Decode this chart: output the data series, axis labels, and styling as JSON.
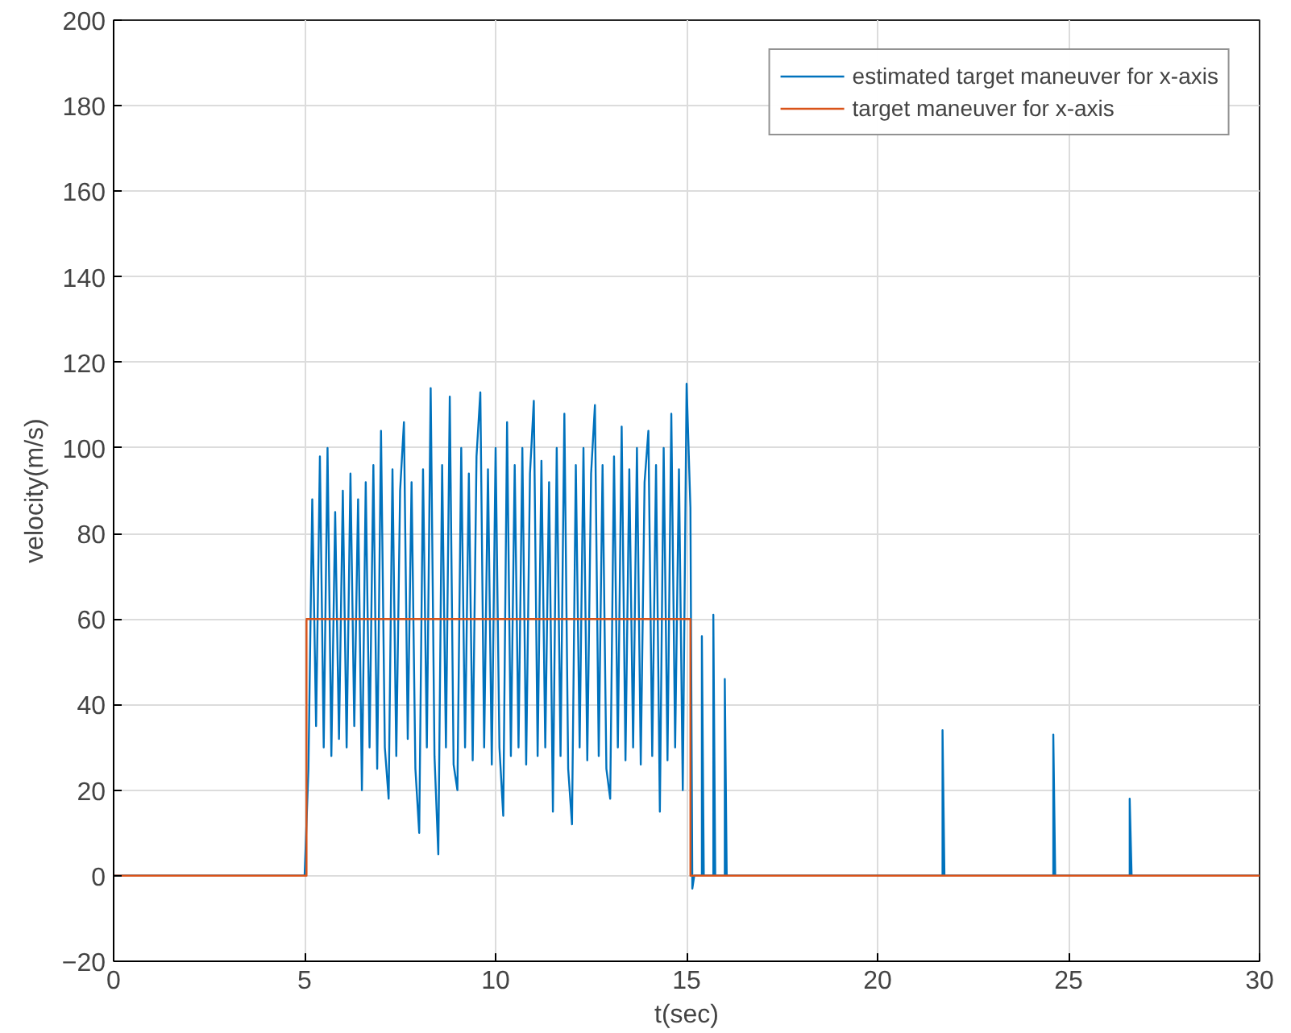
{
  "chart_data": {
    "type": "line",
    "xlabel": "t(sec)",
    "ylabel": "velocity(m/s)",
    "xlim": [
      0,
      30
    ],
    "ylim": [
      -20,
      200
    ],
    "xticks": [
      0,
      5,
      10,
      15,
      20,
      25,
      30
    ],
    "yticks": [
      -20,
      0,
      20,
      40,
      60,
      80,
      100,
      120,
      140,
      160,
      180,
      200
    ],
    "grid": true,
    "legend": "top right",
    "line_style": "solid",
    "marker": "none",
    "series": [
      {
        "name": "estimated target maneuver for x-axis",
        "color": "#0072bd",
        "x": [
          0,
          5.0,
          5.1,
          5.2,
          5.3,
          5.4,
          5.5,
          5.6,
          5.7,
          5.8,
          5.9,
          6.0,
          6.1,
          6.2,
          6.3,
          6.4,
          6.5,
          6.6,
          6.7,
          6.8,
          6.9,
          7.0,
          7.1,
          7.2,
          7.3,
          7.4,
          7.5,
          7.6,
          7.7,
          7.8,
          7.9,
          8.0,
          8.1,
          8.2,
          8.3,
          8.4,
          8.5,
          8.6,
          8.7,
          8.8,
          8.9,
          9.0,
          9.1,
          9.2,
          9.3,
          9.4,
          9.5,
          9.6,
          9.7,
          9.8,
          9.9,
          10.0,
          10.1,
          10.2,
          10.3,
          10.4,
          10.5,
          10.6,
          10.7,
          10.8,
          10.9,
          11.0,
          11.1,
          11.2,
          11.3,
          11.4,
          11.5,
          11.6,
          11.7,
          11.8,
          11.9,
          12.0,
          12.1,
          12.2,
          12.3,
          12.4,
          12.5,
          12.6,
          12.7,
          12.8,
          12.9,
          13.0,
          13.1,
          13.2,
          13.3,
          13.4,
          13.5,
          13.6,
          13.7,
          13.8,
          13.9,
          14.0,
          14.1,
          14.2,
          14.3,
          14.4,
          14.5,
          14.6,
          14.7,
          14.8,
          14.9,
          15.0,
          15.1,
          15.15,
          15.2,
          15.4,
          15.4,
          15.45,
          15.7,
          15.7,
          15.75,
          16.0,
          16.0,
          16.05,
          21.7,
          21.7,
          21.75,
          24.6,
          24.6,
          24.65,
          26.6,
          26.6,
          26.65,
          30
        ],
        "values": [
          0,
          0,
          25,
          88,
          35,
          98,
          30,
          100,
          28,
          85,
          32,
          90,
          30,
          94,
          35,
          88,
          20,
          92,
          30,
          96,
          25,
          104,
          30,
          18,
          95,
          28,
          90,
          106,
          32,
          92,
          25,
          10,
          95,
          30,
          114,
          28,
          5,
          96,
          30,
          112,
          26,
          20,
          100,
          30,
          94,
          27,
          98,
          113,
          30,
          95,
          26,
          100,
          30,
          14,
          106,
          28,
          96,
          30,
          100,
          26,
          94,
          111,
          28,
          97,
          30,
          92,
          15,
          100,
          28,
          108,
          25,
          12,
          96,
          30,
          100,
          27,
          94,
          110,
          28,
          96,
          25,
          18,
          98,
          30,
          105,
          27,
          95,
          30,
          100,
          26,
          92,
          104,
          28,
          96,
          15,
          100,
          27,
          108,
          30,
          95,
          20,
          115,
          86,
          -3,
          0,
          0,
          56,
          0,
          0,
          61,
          0,
          0,
          46,
          0,
          0,
          34,
          0,
          0,
          33,
          0,
          0,
          18,
          0,
          0
        ]
      },
      {
        "name": "target maneuver for x-axis",
        "color": "#d95319",
        "x": [
          0,
          5.05,
          5.05,
          15.1,
          15.1,
          30
        ],
        "values": [
          0,
          0,
          60,
          60,
          0,
          0
        ]
      }
    ]
  }
}
